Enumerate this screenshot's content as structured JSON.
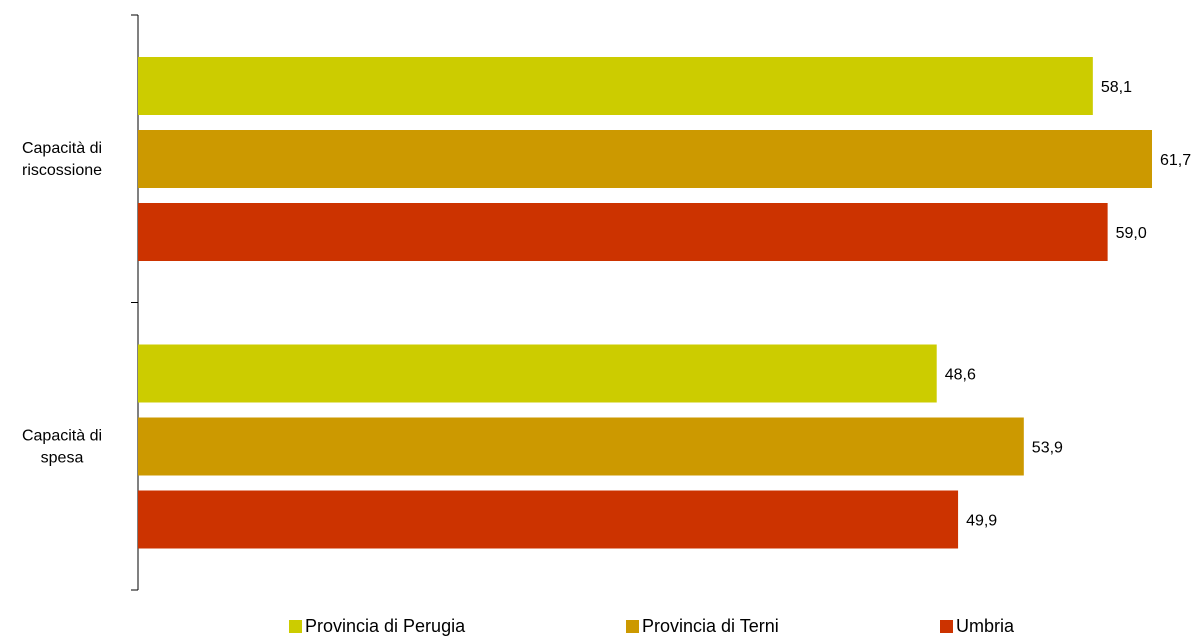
{
  "chart_data": {
    "type": "bar",
    "orientation": "horizontal",
    "categories": [
      {
        "lines": [
          "Capacità di",
          "riscossione"
        ]
      },
      {
        "lines": [
          "Capacità di",
          "spesa"
        ]
      }
    ],
    "series": [
      {
        "name": "Provincia di Perugia",
        "color": "#CCCC00",
        "values": [
          58.1,
          48.6
        ],
        "labels": [
          "58,1",
          "48,6"
        ]
      },
      {
        "name": "Provincia di Terni",
        "color": "#CC9900",
        "values": [
          61.7,
          53.9
        ],
        "labels": [
          "61,7",
          "53,9"
        ]
      },
      {
        "name": "Umbria",
        "color": "#CC3300",
        "values": [
          59.0,
          49.9
        ],
        "labels": [
          "59,0",
          "49,9"
        ]
      }
    ],
    "xlim": [
      0,
      62
    ],
    "grid": false,
    "legend_position": "bottom"
  }
}
